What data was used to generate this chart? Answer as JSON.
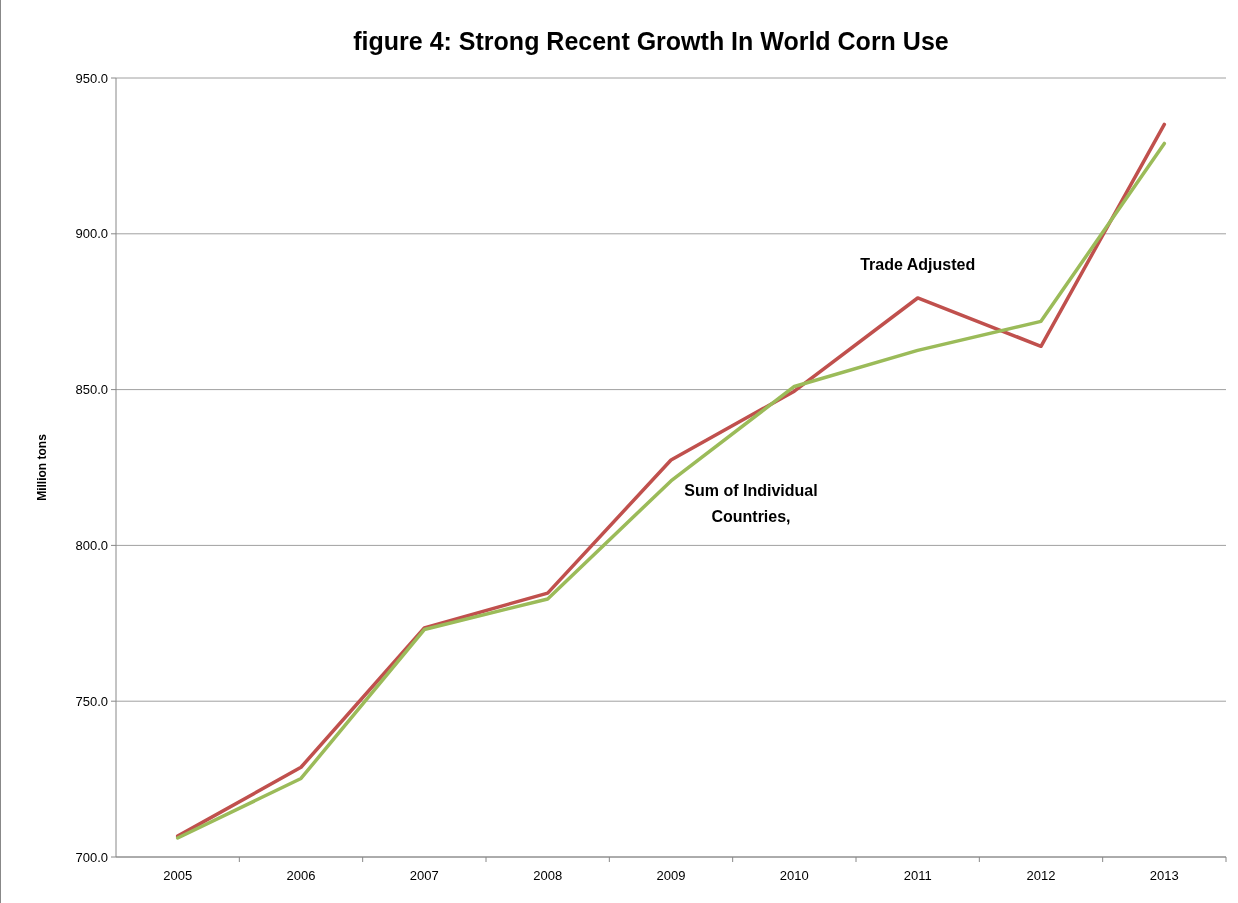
{
  "chart_data": {
    "type": "line",
    "title": "figure 4: Strong Recent Growth In World Corn Use",
    "ylabel": "Million tons",
    "categories": [
      "2005",
      "2006",
      "2007",
      "2008",
      "2009",
      "2010",
      "2011",
      "2012",
      "2013"
    ],
    "series": [
      {
        "name": "Trade Adjusted",
        "color": "#c0504d",
        "values": [
          706.7,
          728.8,
          773.5,
          784.7,
          827.4,
          849.5,
          879.4,
          863.9,
          935.1
        ]
      },
      {
        "name": "Sum of Individual Countries,",
        "color": "#9bbb59",
        "values": [
          706.1,
          725.2,
          773.0,
          782.8,
          820.7,
          851.0,
          862.6,
          871.9,
          929.0
        ]
      }
    ],
    "ylim": [
      700,
      950
    ],
    "yticks": [
      {
        "value": 700,
        "label": "700.0"
      },
      {
        "value": 750,
        "label": "750.0"
      },
      {
        "value": 800,
        "label": "800.0"
      },
      {
        "value": 850,
        "label": "850.0"
      },
      {
        "value": 900,
        "label": "900.0"
      },
      {
        "value": 950,
        "label": "950.0"
      }
    ],
    "grid": "y",
    "marker": "none",
    "line_style": "solid"
  }
}
